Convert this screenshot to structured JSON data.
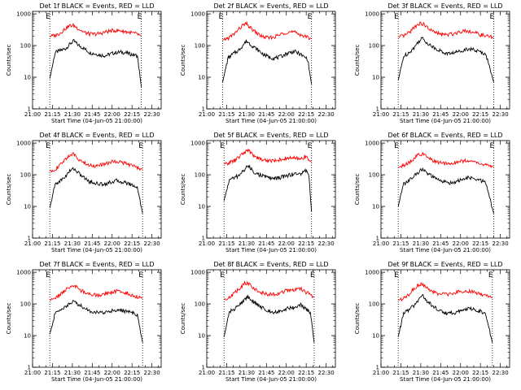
{
  "figure": {
    "background": "#ffffff",
    "colors": {
      "events": "#000000",
      "lld": "#ff0000",
      "axes": "#000000"
    }
  },
  "chart_data": [
    {
      "type": "line",
      "title": "Det 1f BLACK = Events, RED = LLD",
      "xlabel": "Start Time (04-Jun-05 21:00:00)",
      "ylabel": "Counts/sec",
      "yscale": "log",
      "ylim": [
        1,
        1200
      ],
      "xlim": [
        "21:00",
        "22:37"
      ],
      "x_ticks": [
        "21:00",
        "21:15",
        "21:30",
        "21:45",
        "22:00",
        "22:15",
        "22:30"
      ],
      "y_ticks": [
        "1",
        "10",
        "100",
        "1000"
      ],
      "markers": [
        {
          "label": "E",
          "time": "21:13"
        },
        {
          "label": "E",
          "time": "22:22"
        }
      ],
      "x": [
        "21:13",
        "21:17",
        "21:21",
        "21:25",
        "21:28",
        "21:31",
        "21:35",
        "21:39",
        "21:43",
        "21:47",
        "21:51",
        "21:55",
        "21:59",
        "22:03",
        "22:07",
        "22:11",
        "22:15",
        "22:19",
        "22:22"
      ],
      "series": [
        {
          "name": "Events",
          "color": "#000000",
          "values": [
            9,
            60,
            70,
            80,
            110,
            140,
            100,
            80,
            60,
            55,
            50,
            48,
            55,
            60,
            62,
            58,
            52,
            48,
            5
          ]
        },
        {
          "name": "LLD",
          "color": "#ff0000",
          "values": [
            190,
            210,
            250,
            350,
            420,
            430,
            330,
            260,
            230,
            230,
            240,
            270,
            290,
            300,
            290,
            270,
            250,
            230,
            200
          ]
        }
      ]
    },
    {
      "type": "line",
      "title": "Det 2f BLACK = Events, RED = LLD",
      "xlabel": "Start Time (04-Jun-05 21:00:00)",
      "ylabel": "Counts/sec",
      "yscale": "log",
      "ylim": [
        1,
        1200
      ],
      "xlim": [
        "21:00",
        "22:37"
      ],
      "x_ticks": [
        "21:00",
        "21:15",
        "21:30",
        "21:45",
        "22:00",
        "22:15",
        "22:30"
      ],
      "y_ticks": [
        "1",
        "10",
        "100",
        "1000"
      ],
      "markers": [
        {
          "label": "E",
          "time": "21:12"
        },
        {
          "label": "E",
          "time": "22:19"
        }
      ],
      "x": [
        "21:12",
        "21:16",
        "21:20",
        "21:24",
        "21:27",
        "21:30",
        "21:34",
        "21:38",
        "21:42",
        "21:46",
        "21:50",
        "21:54",
        "21:58",
        "22:02",
        "22:06",
        "22:10",
        "22:13",
        "22:16",
        "22:19"
      ],
      "series": [
        {
          "name": "Events",
          "color": "#000000",
          "values": [
            7,
            40,
            55,
            70,
            100,
            140,
            100,
            75,
            55,
            45,
            40,
            42,
            50,
            60,
            65,
            55,
            45,
            38,
            6
          ]
        },
        {
          "name": "LLD",
          "color": "#ff0000",
          "values": [
            150,
            170,
            220,
            320,
            430,
            480,
            330,
            240,
            190,
            175,
            180,
            210,
            250,
            270,
            260,
            230,
            200,
            180,
            170
          ]
        }
      ]
    },
    {
      "type": "line",
      "title": "Det 3f BLACK = Events, RED = LLD",
      "xlabel": "Start Time (04-Jun-05 21:00:00)",
      "ylabel": "Counts/sec",
      "yscale": "log",
      "ylim": [
        1,
        1200
      ],
      "xlim": [
        "21:00",
        "22:37"
      ],
      "x_ticks": [
        "21:00",
        "21:15",
        "21:30",
        "21:45",
        "22:00",
        "22:15",
        "22:30"
      ],
      "y_ticks": [
        "1",
        "10",
        "100",
        "1000"
      ],
      "markers": [
        {
          "label": "E",
          "time": "21:13"
        },
        {
          "label": "E",
          "time": "22:25"
        }
      ],
      "x": [
        "21:13",
        "21:17",
        "21:21",
        "21:25",
        "21:28",
        "21:31",
        "21:35",
        "21:39",
        "21:43",
        "21:47",
        "21:51",
        "21:55",
        "21:59",
        "22:03",
        "22:07",
        "22:11",
        "22:15",
        "22:19",
        "22:25"
      ],
      "series": [
        {
          "name": "Events",
          "color": "#000000",
          "values": [
            8,
            45,
            60,
            85,
            130,
            170,
            120,
            90,
            75,
            60,
            55,
            60,
            65,
            75,
            80,
            70,
            62,
            55,
            7
          ]
        },
        {
          "name": "LLD",
          "color": "#ff0000",
          "values": [
            180,
            200,
            250,
            380,
            480,
            500,
            370,
            280,
            240,
            220,
            220,
            240,
            270,
            300,
            280,
            250,
            220,
            200,
            180
          ]
        }
      ]
    },
    {
      "type": "line",
      "title": "Det 4f BLACK = Events, RED = LLD",
      "xlabel": "Start Time (04-Jun-05 21:00:00)",
      "ylabel": "Counts/sec",
      "yscale": "log",
      "ylim": [
        1,
        1200
      ],
      "xlim": [
        "21:00",
        "22:37"
      ],
      "x_ticks": [
        "21:00",
        "21:15",
        "21:30",
        "21:45",
        "22:00",
        "22:15",
        "22:30"
      ],
      "y_ticks": [
        "1",
        "10",
        "100",
        "1000"
      ],
      "markers": [
        {
          "label": "E",
          "time": "21:13"
        },
        {
          "label": "E",
          "time": "22:23"
        }
      ],
      "x": [
        "21:13",
        "21:17",
        "21:21",
        "21:25",
        "21:28",
        "21:31",
        "21:35",
        "21:39",
        "21:43",
        "21:47",
        "21:51",
        "21:55",
        "21:59",
        "22:03",
        "22:07",
        "22:11",
        "22:15",
        "22:19",
        "22:23"
      ],
      "series": [
        {
          "name": "Events",
          "color": "#000000",
          "values": [
            9,
            50,
            65,
            90,
            130,
            160,
            110,
            80,
            60,
            55,
            50,
            52,
            58,
            65,
            60,
            55,
            48,
            40,
            6
          ]
        },
        {
          "name": "LLD",
          "color": "#ff0000",
          "values": [
            130,
            150,
            200,
            320,
            420,
            440,
            310,
            230,
            200,
            190,
            200,
            220,
            250,
            270,
            250,
            220,
            190,
            170,
            150
          ]
        }
      ]
    },
    {
      "type": "line",
      "title": "Det 5f BLACK = Events, RED = LLD",
      "xlabel": "Start Time (04-Jun-05 21:00:00)",
      "ylabel": "Counts/sec",
      "yscale": "log",
      "ylim": [
        1,
        1200
      ],
      "xlim": [
        "21:00",
        "22:37"
      ],
      "x_ticks": [
        "21:00",
        "21:15",
        "21:30",
        "21:45",
        "22:00",
        "22:15",
        "22:30"
      ],
      "y_ticks": [
        "1",
        "10",
        "100",
        "1000"
      ],
      "markers": [
        {
          "label": "E",
          "time": "21:13"
        },
        {
          "label": "E",
          "time": "22:19"
        }
      ],
      "x": [
        "21:13",
        "21:17",
        "21:21",
        "21:25",
        "21:28",
        "21:31",
        "21:35",
        "21:39",
        "21:43",
        "21:47",
        "21:51",
        "21:55",
        "21:59",
        "22:03",
        "22:07",
        "22:11",
        "22:14",
        "22:17",
        "22:19"
      ],
      "series": [
        {
          "name": "Events",
          "color": "#000000",
          "values": [
            15,
            70,
            80,
            100,
            140,
            190,
            130,
            100,
            90,
            80,
            75,
            80,
            90,
            100,
            110,
            100,
            150,
            90,
            7
          ]
        },
        {
          "name": "LLD",
          "color": "#ff0000",
          "values": [
            220,
            240,
            280,
            380,
            500,
            600,
            420,
            330,
            290,
            280,
            280,
            300,
            320,
            340,
            330,
            310,
            380,
            300,
            250
          ]
        }
      ]
    },
    {
      "type": "line",
      "title": "Det 6f BLACK = Events, RED = LLD",
      "xlabel": "Start Time (04-Jun-05 21:00:00)",
      "ylabel": "Counts/sec",
      "yscale": "log",
      "ylim": [
        1,
        1200
      ],
      "xlim": [
        "21:00",
        "22:37"
      ],
      "x_ticks": [
        "21:00",
        "21:15",
        "21:30",
        "21:45",
        "22:00",
        "22:15",
        "22:30"
      ],
      "y_ticks": [
        "1",
        "10",
        "100",
        "1000"
      ],
      "markers": [
        {
          "label": "E",
          "time": "21:13"
        },
        {
          "label": "E",
          "time": "22:25"
        }
      ],
      "x": [
        "21:13",
        "21:17",
        "21:21",
        "21:25",
        "21:28",
        "21:31",
        "21:35",
        "21:39",
        "21:43",
        "21:47",
        "21:51",
        "21:55",
        "21:59",
        "22:03",
        "22:07",
        "22:11",
        "22:15",
        "22:19",
        "22:25"
      ],
      "series": [
        {
          "name": "Events",
          "color": "#000000",
          "values": [
            10,
            50,
            65,
            90,
            120,
            150,
            110,
            85,
            70,
            60,
            55,
            58,
            65,
            75,
            80,
            72,
            65,
            58,
            6
          ]
        },
        {
          "name": "LLD",
          "color": "#ff0000",
          "values": [
            170,
            190,
            240,
            330,
            430,
            450,
            350,
            280,
            240,
            230,
            230,
            240,
            260,
            280,
            270,
            250,
            220,
            200,
            180
          ]
        }
      ]
    },
    {
      "type": "line",
      "title": "Det 7f BLACK = Events, RED = LLD",
      "xlabel": "Start Time (04-Jun-05 21:00:00)",
      "ylabel": "Counts/sec",
      "yscale": "log",
      "ylim": [
        1,
        1200
      ],
      "xlim": [
        "21:00",
        "22:37"
      ],
      "x_ticks": [
        "21:00",
        "21:15",
        "21:30",
        "21:45",
        "22:00",
        "22:15",
        "22:30"
      ],
      "y_ticks": [
        "1",
        "10",
        "100",
        "1000"
      ],
      "markers": [
        {
          "label": "E",
          "time": "21:13"
        },
        {
          "label": "E",
          "time": "22:23"
        }
      ],
      "x": [
        "21:13",
        "21:17",
        "21:21",
        "21:25",
        "21:28",
        "21:31",
        "21:35",
        "21:39",
        "21:43",
        "21:47",
        "21:51",
        "21:55",
        "21:59",
        "22:03",
        "22:07",
        "22:11",
        "22:15",
        "22:19",
        "22:23"
      ],
      "series": [
        {
          "name": "Events",
          "color": "#000000",
          "values": [
            11,
            50,
            65,
            85,
            100,
            120,
            95,
            75,
            60,
            55,
            52,
            55,
            60,
            65,
            62,
            58,
            52,
            45,
            6
          ]
        },
        {
          "name": "LLD",
          "color": "#ff0000",
          "values": [
            130,
            150,
            200,
            280,
            350,
            380,
            290,
            230,
            200,
            190,
            190,
            210,
            230,
            250,
            240,
            220,
            190,
            170,
            150
          ]
        }
      ]
    },
    {
      "type": "line",
      "title": "Det 8f BLACK = Events, RED = LLD",
      "xlabel": "Start Time (04-Jun-05 21:00:00)",
      "ylabel": "Counts/sec",
      "yscale": "log",
      "ylim": [
        1,
        1200
      ],
      "xlim": [
        "21:00",
        "22:37"
      ],
      "x_ticks": [
        "21:00",
        "21:15",
        "21:30",
        "21:45",
        "22:00",
        "22:15",
        "22:30"
      ],
      "y_ticks": [
        "1",
        "10",
        "100",
        "1000"
      ],
      "markers": [
        {
          "label": "E",
          "time": "21:13"
        },
        {
          "label": "E",
          "time": "22:21"
        }
      ],
      "x": [
        "21:13",
        "21:17",
        "21:21",
        "21:25",
        "21:28",
        "21:31",
        "21:35",
        "21:39",
        "21:43",
        "21:47",
        "21:51",
        "21:55",
        "21:59",
        "22:03",
        "22:07",
        "22:11",
        "22:14",
        "22:18",
        "22:21"
      ],
      "series": [
        {
          "name": "Events",
          "color": "#000000",
          "values": [
            9,
            55,
            70,
            95,
            130,
            170,
            120,
            90,
            70,
            60,
            55,
            60,
            68,
            75,
            80,
            95,
            70,
            55,
            6
          ]
        },
        {
          "name": "LLD",
          "color": "#ff0000",
          "values": [
            140,
            160,
            220,
            320,
            430,
            460,
            330,
            250,
            210,
            200,
            200,
            220,
            250,
            270,
            280,
            300,
            240,
            200,
            160
          ]
        }
      ]
    },
    {
      "type": "line",
      "title": "Det 9f BLACK = Events, RED = LLD",
      "xlabel": "Start Time (04-Jun-05 21:00:00)",
      "ylabel": "Counts/sec",
      "yscale": "log",
      "ylim": [
        1,
        1200
      ],
      "xlim": [
        "21:00",
        "22:37"
      ],
      "x_ticks": [
        "21:00",
        "21:15",
        "21:30",
        "21:45",
        "22:00",
        "22:15",
        "22:30"
      ],
      "y_ticks": [
        "1",
        "10",
        "100",
        "1000"
      ],
      "markers": [
        {
          "label": "E",
          "time": "21:13"
        },
        {
          "label": "E",
          "time": "22:24"
        }
      ],
      "x": [
        "21:13",
        "21:17",
        "21:21",
        "21:25",
        "21:28",
        "21:31",
        "21:35",
        "21:39",
        "21:43",
        "21:47",
        "21:51",
        "21:55",
        "21:59",
        "22:03",
        "22:07",
        "22:11",
        "22:15",
        "22:19",
        "22:24"
      ],
      "series": [
        {
          "name": "Events",
          "color": "#000000",
          "values": [
            9,
            50,
            65,
            90,
            130,
            190,
            120,
            85,
            65,
            55,
            50,
            52,
            60,
            68,
            70,
            65,
            58,
            50,
            6
          ]
        },
        {
          "name": "LLD",
          "color": "#ff0000",
          "values": [
            130,
            150,
            200,
            300,
            400,
            420,
            320,
            240,
            210,
            200,
            200,
            215,
            240,
            260,
            250,
            225,
            200,
            180,
            155
          ]
        }
      ]
    }
  ]
}
